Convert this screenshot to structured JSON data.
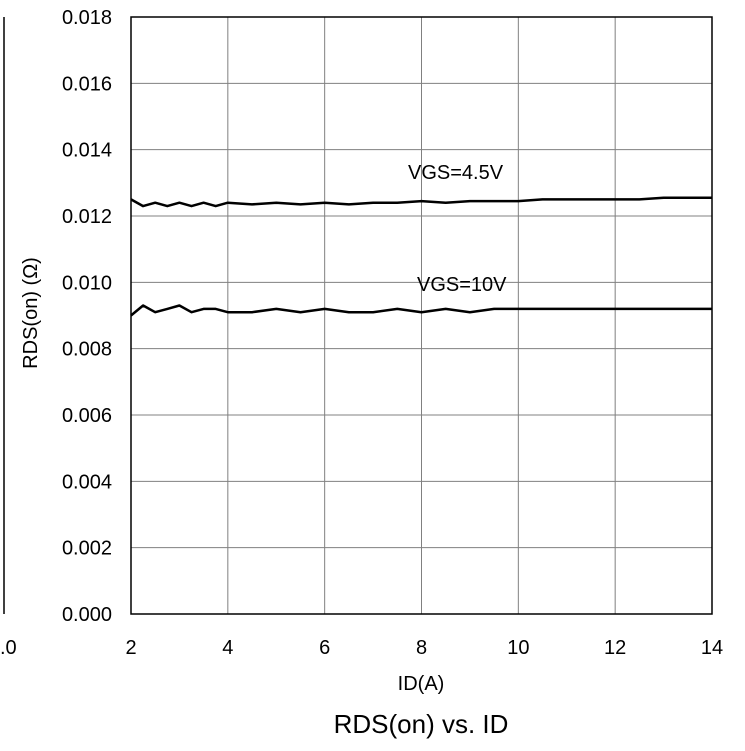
{
  "chart_data": {
    "type": "line",
    "title": "RDS(on) vs. ID",
    "xlabel": "ID(A)",
    "ylabel": "RDS(on) (Ω)",
    "xlim": [
      2,
      14
    ],
    "ylim": [
      0,
      0.018
    ],
    "grid": true,
    "x_ticks": [
      "2",
      "4",
      "6",
      "8",
      "10",
      "12",
      "14"
    ],
    "y_ticks": [
      "0.000",
      "0.002",
      "0.004",
      "0.006",
      "0.008",
      "0.010",
      "0.012",
      "0.014",
      "0.016",
      "0.018"
    ],
    "series": [
      {
        "name": "VGS=4.5V",
        "x": [
          2.0,
          2.25,
          2.5,
          2.75,
          3.0,
          3.25,
          3.5,
          3.75,
          4.0,
          4.5,
          5.0,
          5.5,
          6.0,
          6.5,
          7.0,
          7.5,
          8.0,
          8.5,
          9.0,
          9.5,
          10.0,
          10.5,
          11.0,
          11.5,
          12.0,
          12.5,
          13.0,
          13.5,
          14.0
        ],
        "values": [
          0.0125,
          0.0123,
          0.0124,
          0.0123,
          0.0124,
          0.0123,
          0.0124,
          0.0123,
          0.0124,
          0.01235,
          0.0124,
          0.01235,
          0.0124,
          0.01235,
          0.0124,
          0.0124,
          0.01245,
          0.0124,
          0.01245,
          0.01245,
          0.01245,
          0.0125,
          0.0125,
          0.0125,
          0.0125,
          0.0125,
          0.01255,
          0.01255,
          0.01255
        ]
      },
      {
        "name": "VGS=10V",
        "x": [
          2.0,
          2.25,
          2.5,
          2.75,
          3.0,
          3.25,
          3.5,
          3.75,
          4.0,
          4.5,
          5.0,
          5.5,
          6.0,
          6.5,
          7.0,
          7.5,
          8.0,
          8.5,
          9.0,
          9.5,
          10.0,
          10.5,
          11.0,
          11.5,
          12.0,
          12.5,
          13.0,
          13.5,
          14.0
        ],
        "values": [
          0.009,
          0.0093,
          0.0091,
          0.0092,
          0.0093,
          0.0091,
          0.0092,
          0.0092,
          0.0091,
          0.0091,
          0.0092,
          0.0091,
          0.0092,
          0.0091,
          0.0091,
          0.0092,
          0.0091,
          0.0092,
          0.0091,
          0.0092,
          0.0092,
          0.0092,
          0.0092,
          0.0092,
          0.0092,
          0.0092,
          0.0092,
          0.0092,
          0.0092
        ]
      }
    ],
    "annotations": [
      "VGS=4.5V",
      "VGS=10V"
    ],
    "left_fragment_tick": ".0"
  },
  "colors": {
    "line": "#000000",
    "grid": "#808080",
    "axis": "#000000",
    "background": "#ffffff"
  }
}
